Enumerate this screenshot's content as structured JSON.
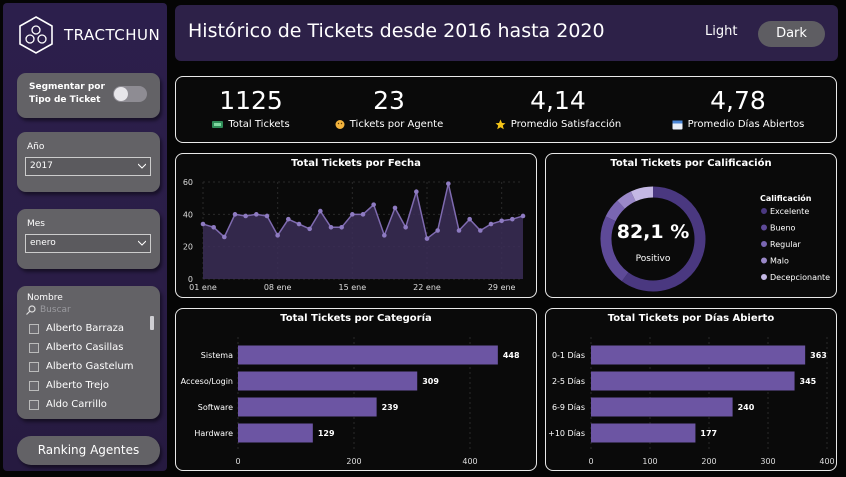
{
  "brand": {
    "name": "TRACTCHUN"
  },
  "filters": {
    "segment_label": "Segmentar por Tipo de Ticket",
    "year_label": "Año",
    "year_value": "2017",
    "month_label": "Mes",
    "month_value": "enero",
    "name_label": "Nombre",
    "search_placeholder": "Buscar",
    "names": [
      "Alberto Barraza",
      "Alberto Casillas",
      "Alberto Gastelum",
      "Alberto Trejo",
      "Aldo Carrillo"
    ],
    "ranking_button": "Ranking Agentes"
  },
  "header": {
    "title": "Histórico de Tickets desde 2016 hasta 2020",
    "light": "Light",
    "dark": "Dark"
  },
  "kpis": [
    {
      "value": "1125",
      "label": "Total Tickets",
      "icon": "ticket-icon"
    },
    {
      "value": "23",
      "label": "Tickets por Agente",
      "icon": "agent-icon"
    },
    {
      "value": "4,14",
      "label": "Promedio Satisfacción",
      "icon": "star-icon"
    },
    {
      "value": "4,78",
      "label": "Promedio Días Abiertos",
      "icon": "calendar-icon"
    }
  ],
  "colors": {
    "accent": "#6c55a3",
    "panel_bg": "#0a0a0a",
    "sidebar": "#2a1d46"
  },
  "chart_data": [
    {
      "type": "area",
      "title": "Total Tickets por Fecha",
      "x_ticks": [
        "01 ene",
        "08 ene",
        "15 ene",
        "22 ene",
        "29 ene"
      ],
      "y_ticks": [
        "0",
        "20",
        "40",
        "60"
      ],
      "ylim": [
        0,
        60
      ],
      "x": [
        "01 ene",
        "02 ene",
        "03 ene",
        "04 ene",
        "05 ene",
        "06 ene",
        "07 ene",
        "08 ene",
        "09 ene",
        "10 ene",
        "11 ene",
        "12 ene",
        "13 ene",
        "14 ene",
        "15 ene",
        "16 ene",
        "17 ene",
        "18 ene",
        "19 ene",
        "20 ene",
        "21 ene",
        "22 ene",
        "23 ene",
        "24 ene",
        "25 ene",
        "26 ene",
        "27 ene",
        "28 ene",
        "29 ene",
        "30 ene",
        "31 ene"
      ],
      "values": [
        34,
        32,
        26,
        40,
        39,
        40,
        39,
        27,
        37,
        34,
        31,
        42,
        32,
        32,
        40,
        40,
        46,
        27,
        44,
        32,
        54,
        25,
        30,
        59,
        30,
        37,
        30,
        34,
        36,
        37,
        39
      ]
    },
    {
      "type": "pie",
      "title": "Total Tickets por Calificación",
      "center_value": "82,1 %",
      "center_label": "Positivo",
      "legend_title": "Calificación",
      "categories": [
        "Excelente",
        "Bueno",
        "Regular",
        "Malo",
        "Decepcionante"
      ],
      "values": [
        60.1,
        22.0,
        6.0,
        5.0,
        6.9
      ],
      "colors": [
        "#4a3880",
        "#5e4a98",
        "#7a66b2",
        "#9a88c8",
        "#c4b8e4"
      ]
    },
    {
      "type": "bar",
      "title": "Total Tickets por Categoría",
      "categories": [
        "Sistema",
        "Acceso/Login",
        "Software",
        "Hardware"
      ],
      "values": [
        448,
        309,
        239,
        129
      ],
      "x_ticks": [
        "0",
        "200",
        "400"
      ],
      "xlim": [
        0,
        500
      ]
    },
    {
      "type": "bar",
      "title": "Total Tickets por Días Abierto",
      "categories": [
        "0-1 Días",
        "2-5 Días",
        "6-9 Días",
        "+10 Días"
      ],
      "values": [
        363,
        345,
        240,
        177
      ],
      "x_ticks": [
        "0",
        "100",
        "200",
        "300",
        "400"
      ],
      "xlim": [
        0,
        400
      ]
    }
  ]
}
